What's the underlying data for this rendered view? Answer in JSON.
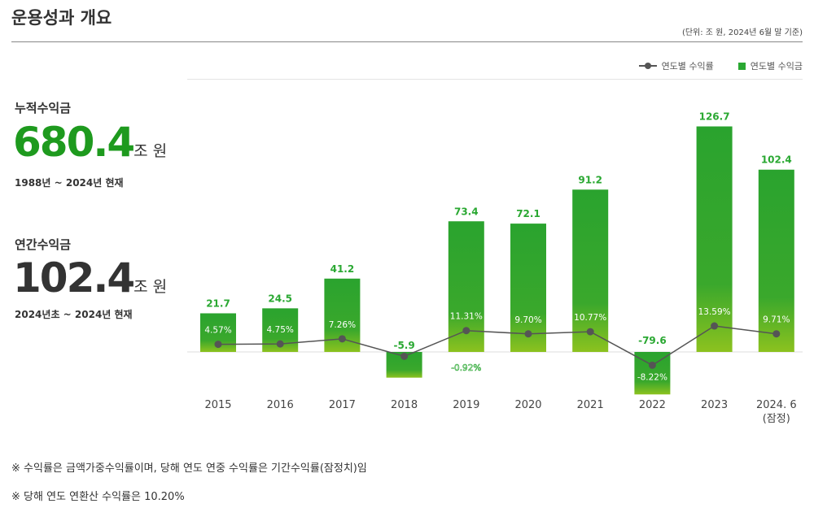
{
  "header": {
    "title": "운용성과 개요",
    "unit_note": "(단위: 조 원, 2024년 6월 말 기준)"
  },
  "kpis": [
    {
      "label": "누적수익금",
      "value": "680.4",
      "unit": "조 원",
      "period": "1988년 ~ 2024년 현재",
      "color": "#1e9a1e"
    },
    {
      "label": "연간수익금",
      "value": "102.4",
      "unit": "조 원",
      "period": "2024년초 ~ 2024년 현재",
      "color": "#333333"
    }
  ],
  "notes": [
    "※ 수익률은 금액가중수익률이며, 당해 연도 연중 수익률은 기간수익률(잠정치)임",
    "※ 당해 연도 연환산 수익률은 10.20%"
  ],
  "chart_data": {
    "type": "bar+line",
    "legend": {
      "position": "top-right",
      "line": "연도별 수익률",
      "bar": "연도별 수익금"
    },
    "categories": [
      "2015",
      "2016",
      "2017",
      "2018",
      "2019",
      "2020",
      "2021",
      "2022",
      "2023",
      "2024. 6\n(잠정)"
    ],
    "series": [
      {
        "name": "연도별 수익금",
        "type": "bar",
        "values": [
          21.7,
          24.5,
          41.2,
          -5.9,
          73.4,
          72.1,
          91.2,
          -79.6,
          126.7,
          102.4
        ],
        "labels": [
          "21.7",
          "24.5",
          "41.2",
          "-5.9",
          "73.4",
          "72.1",
          "91.2",
          "-79.6",
          "126.7",
          "102.4"
        ]
      },
      {
        "name": "연도별 수익률",
        "type": "line",
        "values": [
          4.57,
          4.75,
          7.26,
          -0.92,
          11.31,
          9.7,
          10.77,
          -8.22,
          13.59,
          9.71
        ],
        "labels": [
          "4.57%",
          "4.75%",
          "7.26%",
          "-0.92%",
          "11.31%",
          "9.70%",
          "10.77%",
          "-8.22%",
          "13.59%",
          "9.71%"
        ]
      }
    ],
    "colors": {
      "bar_top": "#2aa32e",
      "bar_bottom": "#8cc21f",
      "line": "#555555",
      "label": "#2aa832"
    }
  }
}
